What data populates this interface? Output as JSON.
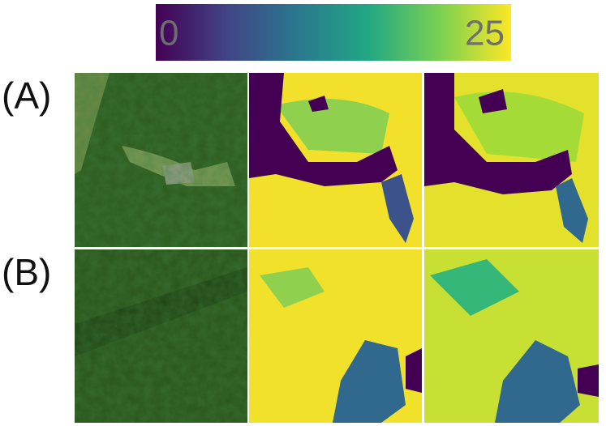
{
  "colorbar": {
    "min": "0",
    "max": "25"
  },
  "rows": [
    {
      "label": "(A)"
    },
    {
      "label": "(B)"
    }
  ]
}
